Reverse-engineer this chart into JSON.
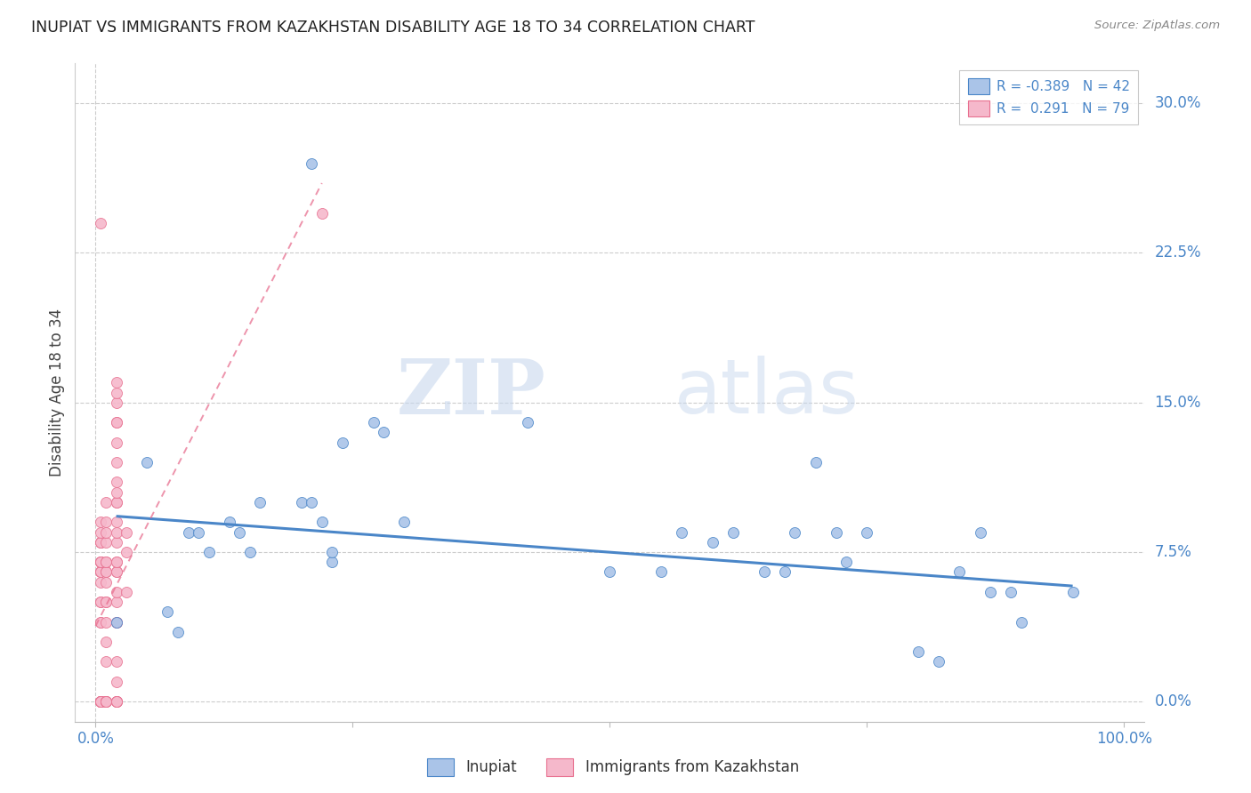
{
  "title": "INUPIAT VS IMMIGRANTS FROM KAZAKHSTAN DISABILITY AGE 18 TO 34 CORRELATION CHART",
  "source": "Source: ZipAtlas.com",
  "ylabel": "Disability Age 18 to 34",
  "xlim": [
    -0.02,
    1.02
  ],
  "ylim": [
    -0.01,
    0.32
  ],
  "yticks": [
    0.0,
    0.075,
    0.15,
    0.225,
    0.3
  ],
  "ytick_labels": [
    "0.0%",
    "7.5%",
    "15.0%",
    "22.5%",
    "30.0%"
  ],
  "xticks": [
    0.0,
    0.25,
    0.5,
    0.75,
    1.0
  ],
  "xtick_labels": [
    "0.0%",
    "",
    "",
    "",
    "100.0%"
  ],
  "blue_color": "#aac4e8",
  "pink_color": "#f5b8cb",
  "trend_blue_color": "#4a86c8",
  "trend_pink_color": "#e87090",
  "label_color": "#4a86c8",
  "watermark_zip": "ZIP",
  "watermark_atlas": "atlas",
  "blue_scatter_x": [
    0.02,
    0.05,
    0.07,
    0.08,
    0.09,
    0.1,
    0.11,
    0.13,
    0.14,
    0.15,
    0.16,
    0.2,
    0.21,
    0.21,
    0.22,
    0.23,
    0.23,
    0.24,
    0.27,
    0.28,
    0.3,
    0.42,
    0.5,
    0.55,
    0.57,
    0.6,
    0.62,
    0.65,
    0.67,
    0.68,
    0.7,
    0.72,
    0.73,
    0.75,
    0.8,
    0.82,
    0.84,
    0.86,
    0.87,
    0.89,
    0.9,
    0.95
  ],
  "blue_scatter_y": [
    0.04,
    0.12,
    0.045,
    0.035,
    0.085,
    0.085,
    0.075,
    0.09,
    0.085,
    0.075,
    0.1,
    0.1,
    0.27,
    0.1,
    0.09,
    0.07,
    0.075,
    0.13,
    0.14,
    0.135,
    0.09,
    0.14,
    0.065,
    0.065,
    0.085,
    0.08,
    0.085,
    0.065,
    0.065,
    0.085,
    0.12,
    0.085,
    0.07,
    0.085,
    0.025,
    0.02,
    0.065,
    0.085,
    0.055,
    0.055,
    0.04,
    0.055
  ],
  "pink_scatter_x": [
    0.005,
    0.005,
    0.005,
    0.005,
    0.005,
    0.005,
    0.005,
    0.005,
    0.005,
    0.005,
    0.005,
    0.005,
    0.005,
    0.005,
    0.005,
    0.005,
    0.005,
    0.005,
    0.005,
    0.005,
    0.005,
    0.005,
    0.005,
    0.005,
    0.005,
    0.005,
    0.005,
    0.01,
    0.01,
    0.01,
    0.01,
    0.01,
    0.01,
    0.01,
    0.01,
    0.01,
    0.01,
    0.01,
    0.01,
    0.01,
    0.01,
    0.01,
    0.01,
    0.01,
    0.01,
    0.01,
    0.02,
    0.02,
    0.02,
    0.02,
    0.02,
    0.02,
    0.02,
    0.02,
    0.02,
    0.02,
    0.02,
    0.02,
    0.02,
    0.02,
    0.02,
    0.02,
    0.02,
    0.02,
    0.02,
    0.02,
    0.02,
    0.02,
    0.02,
    0.02,
    0.02,
    0.02,
    0.02,
    0.02,
    0.02,
    0.03,
    0.03,
    0.03,
    0.22
  ],
  "pink_scatter_y": [
    0.0,
    0.0,
    0.0,
    0.0,
    0.0,
    0.0,
    0.0,
    0.0,
    0.04,
    0.04,
    0.05,
    0.05,
    0.06,
    0.065,
    0.065,
    0.065,
    0.07,
    0.07,
    0.07,
    0.07,
    0.08,
    0.08,
    0.08,
    0.085,
    0.09,
    0.24,
    0.0,
    0.0,
    0.0,
    0.0,
    0.0,
    0.0,
    0.02,
    0.03,
    0.04,
    0.05,
    0.05,
    0.06,
    0.065,
    0.065,
    0.07,
    0.07,
    0.08,
    0.085,
    0.09,
    0.1,
    0.0,
    0.0,
    0.0,
    0.0,
    0.0,
    0.01,
    0.02,
    0.04,
    0.04,
    0.05,
    0.055,
    0.065,
    0.065,
    0.07,
    0.07,
    0.08,
    0.085,
    0.09,
    0.1,
    0.1,
    0.105,
    0.11,
    0.12,
    0.13,
    0.14,
    0.14,
    0.15,
    0.155,
    0.16,
    0.055,
    0.075,
    0.085,
    0.245
  ],
  "blue_trendline_x": [
    0.02,
    0.95
  ],
  "blue_trendline_y": [
    0.093,
    0.058
  ],
  "pink_trendline_x": [
    0.0,
    0.22
  ],
  "pink_trendline_y": [
    0.038,
    0.26
  ]
}
